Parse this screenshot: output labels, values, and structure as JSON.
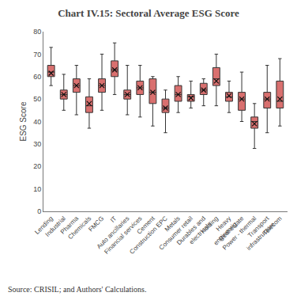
{
  "chart_data": {
    "type": "box",
    "title": "Chart IV.15: Sectoral Average ESG Score",
    "ylabel": "ESG Score",
    "annotations": [
      "Source: CRISIL; and Authors' Calculations."
    ],
    "ylim": [
      0,
      80
    ],
    "yticks": [
      0,
      10,
      20,
      30,
      40,
      50,
      60,
      70,
      80
    ],
    "grid": false,
    "color": "#d9706f",
    "categories": [
      "Lending",
      "Industrial",
      "Pharma",
      "Chemicals",
      "FMCG",
      "IT",
      "Auto ancillaries",
      "Financial services",
      "Cement",
      "Construction EPC",
      "Metals",
      "Consumer retail",
      "Durables and\nelectricals",
      "Holding",
      "Heavy\nengineerig",
      "Real estate",
      "Power - thermal",
      "Transport\ninfrastructure",
      "Telecom"
    ],
    "min": [
      56,
      45,
      43,
      37,
      45,
      52,
      43,
      42,
      38,
      35,
      44,
      46,
      47,
      47,
      44,
      40,
      28,
      35,
      38
    ],
    "q1": [
      60,
      50,
      53,
      44,
      53,
      60,
      50,
      52,
      48,
      44,
      49,
      49,
      52,
      56,
      49,
      45,
      37,
      46,
      46
    ],
    "median": [
      62,
      52,
      56,
      47,
      56,
      63,
      52,
      55,
      53,
      46,
      52,
      51,
      54,
      59,
      51,
      50,
      40,
      50,
      49
    ],
    "q3": [
      65,
      54,
      59,
      51,
      59,
      67,
      54,
      58,
      59,
      50,
      56,
      52,
      57,
      64,
      53,
      53,
      42,
      53,
      58
    ],
    "max": [
      73,
      61,
      65,
      59,
      70,
      75,
      65,
      65,
      60,
      54,
      60,
      58,
      59,
      70,
      58,
      62,
      48,
      65,
      68
    ],
    "mean": [
      61.5,
      52.0,
      56.0,
      48.0,
      56.0,
      63.0,
      52.0,
      55.0,
      53.0,
      46.0,
      52.0,
      50.5,
      54.0,
      58.0,
      51.5,
      50.0,
      39.0,
      50.0,
      50.0
    ]
  }
}
